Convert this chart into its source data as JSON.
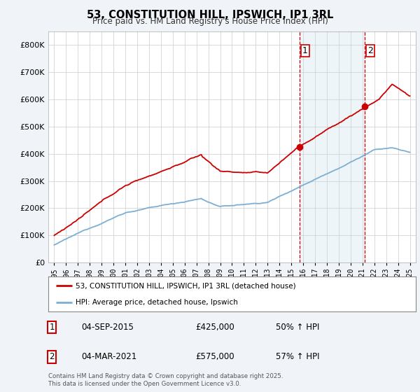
{
  "title": "53, CONSTITUTION HILL, IPSWICH, IP1 3RL",
  "subtitle": "Price paid vs. HM Land Registry's House Price Index (HPI)",
  "legend_line1": "53, CONSTITUTION HILL, IPSWICH, IP1 3RL (detached house)",
  "legend_line2": "HPI: Average price, detached house, Ipswich",
  "transaction1_date": "04-SEP-2015",
  "transaction1_price": "£425,000",
  "transaction1_hpi": "50% ↑ HPI",
  "transaction2_date": "04-MAR-2021",
  "transaction2_price": "£575,000",
  "transaction2_hpi": "57% ↑ HPI",
  "footnote": "Contains HM Land Registry data © Crown copyright and database right 2025.\nThis data is licensed under the Open Government Licence v3.0.",
  "vline1_x": 2015.67,
  "vline2_x": 2021.17,
  "marker1_x": 2015.67,
  "marker1_y": 425000,
  "marker2_x": 2021.17,
  "marker2_y": 575000,
  "property_color": "#cc0000",
  "hpi_color": "#7bafd4",
  "vline_color": "#cc0000",
  "background_color": "#f0f4f8",
  "plot_bg_color": "#ffffff",
  "ylim": [
    0,
    850000
  ],
  "xlim": [
    1994.5,
    2025.5
  ],
  "yticks": [
    0,
    100000,
    200000,
    300000,
    400000,
    500000,
    600000,
    700000,
    800000
  ],
  "xticks": [
    1995,
    1996,
    1997,
    1998,
    1999,
    2000,
    2001,
    2002,
    2003,
    2004,
    2005,
    2006,
    2007,
    2008,
    2009,
    2010,
    2011,
    2012,
    2013,
    2014,
    2015,
    2016,
    2017,
    2018,
    2019,
    2020,
    2021,
    2022,
    2023,
    2024,
    2025
  ]
}
